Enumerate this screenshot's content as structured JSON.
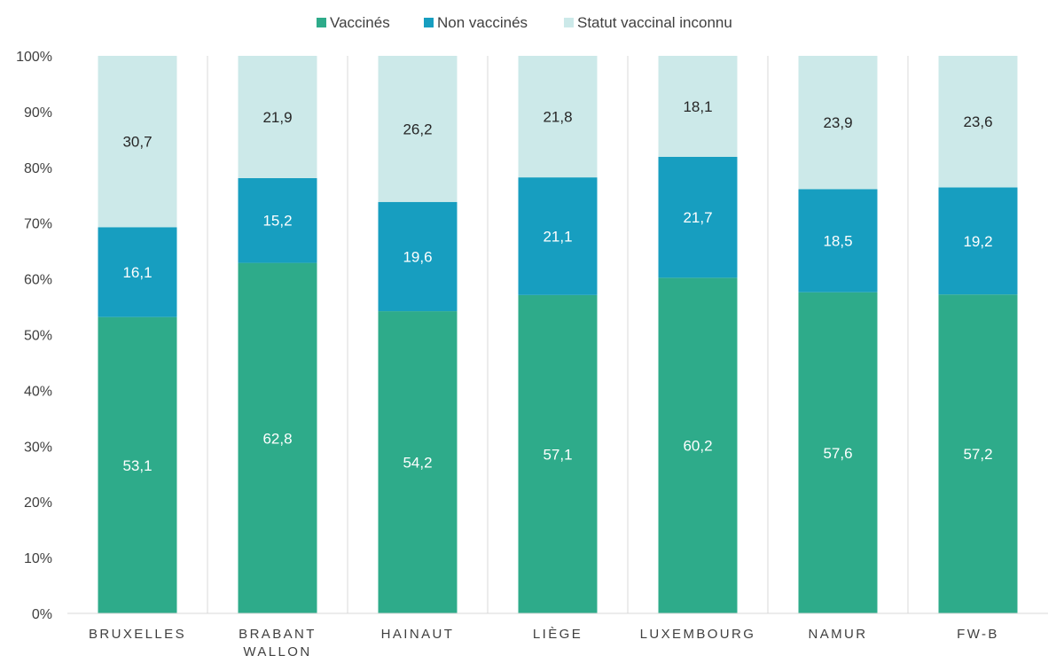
{
  "chart_data": {
    "type": "bar",
    "stacked": true,
    "percent_stacked": true,
    "categories": [
      [
        "BRUXELLES"
      ],
      [
        "BRABANT",
        "WALLON"
      ],
      [
        "HAINAUT"
      ],
      [
        "LIÈGE"
      ],
      [
        "LUXEMBOURG"
      ],
      [
        "NAMUR"
      ],
      [
        "FW-B"
      ]
    ],
    "series": [
      {
        "name": "Vaccinés",
        "color": "#2eab8a",
        "label_color": "#ffffff",
        "values": [
          53.1,
          62.8,
          54.2,
          57.1,
          60.2,
          57.6,
          57.2
        ],
        "labels": [
          "53,1",
          "62,8",
          "54,2",
          "57,1",
          "60,2",
          "57,6",
          "57,2"
        ]
      },
      {
        "name": "Non vaccinés",
        "color": "#179ec0",
        "label_color": "#ffffff",
        "values": [
          16.1,
          15.2,
          19.6,
          21.1,
          21.7,
          18.5,
          19.2
        ],
        "labels": [
          "16,1",
          "15,2",
          "19,6",
          "21,1",
          "21,7",
          "18,5",
          "19,2"
        ]
      },
      {
        "name": "Statut vaccinal inconnu",
        "color": "#cce9e9",
        "label_color": "#262626",
        "values": [
          30.7,
          21.9,
          26.2,
          21.8,
          18.1,
          23.9,
          23.6
        ],
        "labels": [
          "30,7",
          "21,9",
          "26,2",
          "21,8",
          "18,1",
          "23,9",
          "23,6"
        ]
      }
    ],
    "y_ticks": [
      "0%",
      "10%",
      "20%",
      "30%",
      "40%",
      "50%",
      "60%",
      "70%",
      "80%",
      "90%",
      "100%"
    ],
    "ylim": [
      0,
      100
    ],
    "legend_position": "top-center",
    "grid": "vertical category separators",
    "title": "",
    "xlabel": "",
    "ylabel": ""
  }
}
